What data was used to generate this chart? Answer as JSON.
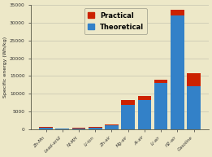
{
  "categories": [
    "Zn-Mn",
    "Lead-acid",
    "Ni-MH",
    "Li-ion",
    "Zn-air",
    "Mg-air",
    "Al-air",
    "Li-air",
    "H2-air",
    "Gasoline"
  ],
  "theoretical": [
    470,
    170,
    200,
    460,
    1090,
    6800,
    8100,
    13000,
    32000,
    12200
  ],
  "practical": [
    570,
    280,
    320,
    590,
    1350,
    8100,
    9350,
    13900,
    33600,
    15700
  ],
  "theoretical_color": "#3381C8",
  "practical_color": "#CC2200",
  "background_color": "#EDE8C8",
  "plot_background": "#EDE8C8",
  "ylabel": "Specific energy (Wh/kg)",
  "ylim": [
    0,
    35000
  ],
  "yticks": [
    0,
    5000,
    10000,
    15000,
    20000,
    25000,
    30000,
    35000
  ],
  "legend_practical": "Practical",
  "legend_theoretical": "Theoretical",
  "bar_width": 0.82
}
